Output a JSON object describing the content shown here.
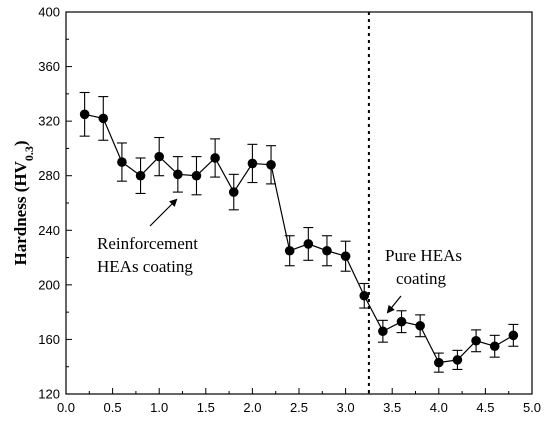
{
  "chart_data": {
    "type": "line",
    "title": "",
    "xlabel": "",
    "ylabel": "Hardness (HV",
    "ylabel_sub": "0.3",
    "ylabel_close": ")",
    "xlim": [
      0.0,
      5.0
    ],
    "ylim": [
      120,
      400
    ],
    "x_ticks": [
      "0.0",
      "0.5",
      "1.0",
      "1.5",
      "2.0",
      "2.5",
      "3.0",
      "3.5",
      "4.0",
      "4.5",
      "5.0"
    ],
    "y_ticks": [
      "120",
      "160",
      "200",
      "240",
      "280",
      "320",
      "360",
      "400"
    ],
    "grid": false,
    "series": [
      {
        "x": [
          0.2,
          0.4,
          0.6,
          0.8,
          1.0,
          1.2,
          1.4,
          1.6,
          1.8,
          2.0,
          2.2,
          2.4,
          2.6,
          2.8,
          3.0,
          3.2,
          3.4,
          3.6,
          3.8,
          4.0,
          4.2,
          4.4,
          4.6,
          4.8
        ],
        "y": [
          325,
          322,
          290,
          280,
          294,
          281,
          280,
          293,
          268,
          289,
          288,
          225,
          230,
          225,
          221,
          192,
          166,
          173,
          170,
          143,
          145,
          159,
          155,
          163
        ],
        "error": [
          16,
          16,
          14,
          13,
          14,
          13,
          14,
          14,
          13,
          14,
          14,
          11,
          12,
          11,
          11,
          9,
          8,
          8,
          8,
          7,
          7,
          8,
          8,
          8
        ]
      }
    ],
    "divider_x": 3.25,
    "annotations": [
      {
        "lines": [
          "Reinforcement",
          "HEAs coating"
        ],
        "arrow_to": [
          1.15,
          258
        ]
      },
      {
        "lines": [
          "Pure HEAs",
          "coating"
        ],
        "arrow_to": [
          3.65,
          170
        ]
      }
    ]
  }
}
